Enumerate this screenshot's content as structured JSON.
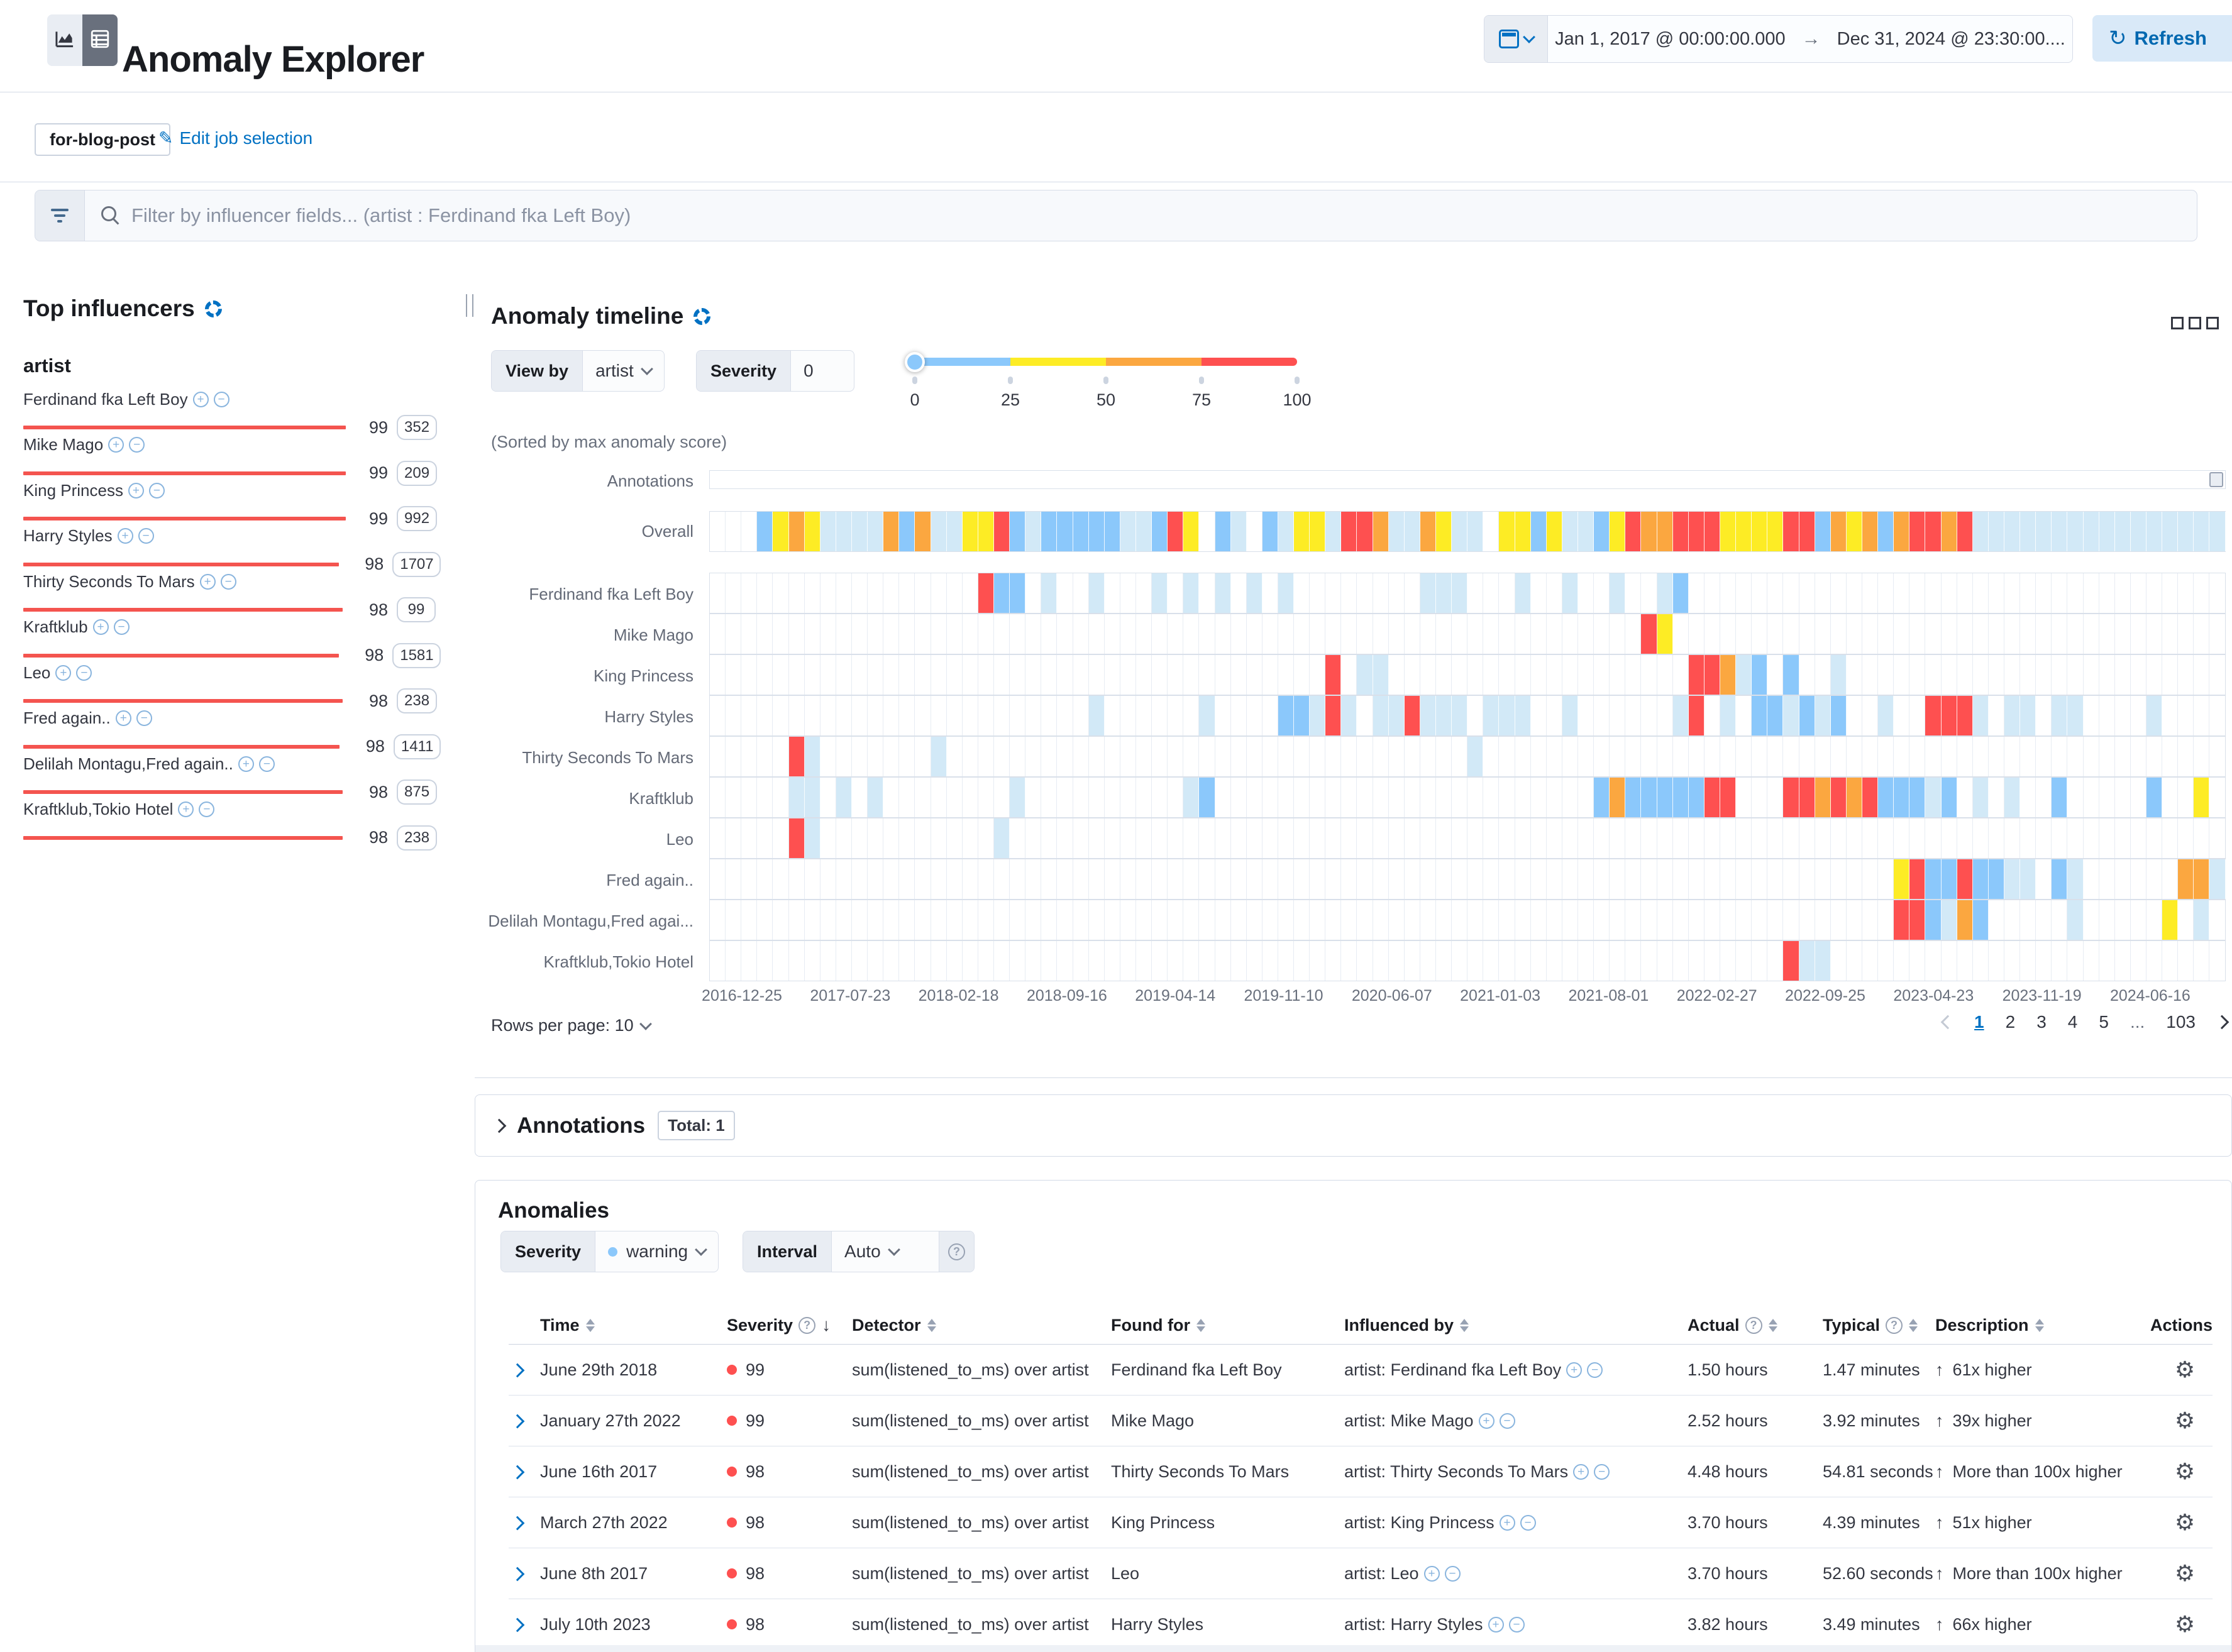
{
  "header": {
    "title": "Anomaly Explorer",
    "time_range": {
      "start": "Jan 1, 2017 @ 00:00:00.000",
      "arrow": "→",
      "end": "Dec 31, 2024 @ 23:30:00....",
      "refresh_label": "Refresh"
    }
  },
  "job_bar": {
    "job_badge": "for-blog-post",
    "edit_link": "Edit job selection"
  },
  "filter_bar": {
    "placeholder": "Filter by influencer fields... (artist : Ferdinand fka Left Boy)"
  },
  "influencers": {
    "title": "Top influencers",
    "field_name": "artist",
    "bar_color": "#F4544F",
    "items": [
      {
        "name": "Ferdinand fka Left Boy",
        "score": "99",
        "count": "352"
      },
      {
        "name": "Mike Mago",
        "score": "99",
        "count": "209"
      },
      {
        "name": "King Princess",
        "score": "99",
        "count": "992"
      },
      {
        "name": "Harry Styles",
        "score": "98",
        "count": "1707"
      },
      {
        "name": "Thirty Seconds To Mars",
        "score": "98",
        "count": "99"
      },
      {
        "name": "Kraftklub",
        "score": "98",
        "count": "1581"
      },
      {
        "name": "Leo",
        "score": "98",
        "count": "238"
      },
      {
        "name": "Fred again..",
        "score": "98",
        "count": "1411"
      },
      {
        "name": "Delilah Montagu,Fred again..",
        "score": "98",
        "count": "875"
      },
      {
        "name": "Kraftklub,Tokio Hotel",
        "score": "98",
        "count": "238"
      }
    ]
  },
  "severity_colors": {
    "low": "#D2E9F7",
    "warning": "#8BC8FB",
    "minor": "#FDEC25",
    "major": "#FBA740",
    "critical": "#FE5050"
  },
  "timeline": {
    "title": "Anomaly timeline",
    "view_by_label": "View by",
    "view_by_value": "artist",
    "severity_label": "Severity",
    "severity_value": "0",
    "severity_scale_ticks": [
      "0",
      "25",
      "50",
      "75",
      "100"
    ],
    "sorted_note": "(Sorted by max anomaly score)",
    "annotations_label": "Annotations",
    "overall_label": "Overall",
    "overall_cells": "...wmMmllllMwMllmmcwlwwwwwllwcm.wl.wlmmlccMllMmll.mmwmllwmcMMcccmmmmccwMmMwMccMcllllllllllllllll",
    "lanes": [
      {
        "label": "Ferdinand fka Left Boy",
        "cells": ".................cww.l..l...l.l.l.l.l........lll...l..l..l..lw.................................."
      },
      {
        "label": "Mike Mago",
        "cells": "...........................................................cm..................................."
      },
      {
        "label": "King Princess",
        "cells": ".......................................c.ll...................ccMlw.w..l........................"
      },
      {
        "label": "Harry Styles",
        "cells": "........................l......l....wwlcl.llclll.lll..l......lc.l.wwlwlw..l..cccl.ll.ll....l...."
      },
      {
        "label": "Thirty Seconds To Mars",
        "cells": ".....cl.......l.................................l..............................................."
      },
      {
        "label": "Kraftklub",
        "cells": ".....ll.l.l........l..........lw........................wMwwwwwcc...ccMcMcwwwlw.l.l..w.....w..m."
      },
      {
        "label": "Leo",
        "cells": ".....cl...........l............................................................................."
      },
      {
        "label": "Fred again..",
        "cells": "...........................................................................mcwwcwwll.wl......MMl"
      },
      {
        "label": "Delilah Montagu,Fred agai...",
        "cells": "...........................................................................ccwlMw.....l.....m.l."
      },
      {
        "label": "Kraftklub,Tokio Hotel",
        "cells": "....................................................................cll........................."
      }
    ],
    "axis_labels": [
      "2016-12-25",
      "2017-07-23",
      "2018-02-18",
      "2018-09-16",
      "2019-04-14",
      "2019-11-10",
      "2020-06-07",
      "2021-01-03",
      "2021-08-01",
      "2022-02-27",
      "2022-09-25",
      "2023-04-23",
      "2023-11-19",
      "2024-06-16"
    ],
    "rows_per_page_label": "Rows per page: 10",
    "pagination": {
      "pages": [
        "1",
        "2",
        "3",
        "4",
        "5",
        "...",
        "103"
      ],
      "active": "1"
    }
  },
  "annotations_section": {
    "title": "Annotations",
    "total_badge": "Total: 1"
  },
  "anomalies": {
    "title": "Anomalies",
    "severity_label": "Severity",
    "severity_value": "warning",
    "interval_label": "Interval",
    "interval_value": "Auto",
    "columns": [
      {
        "label": "Time",
        "sort": true
      },
      {
        "label": "Severity",
        "help": true,
        "sorted_desc": true
      },
      {
        "label": "Detector",
        "sort": true
      },
      {
        "label": "Found for",
        "sort": true
      },
      {
        "label": "Influenced by",
        "sort": true
      },
      {
        "label": "Actual",
        "help": true,
        "sort": true
      },
      {
        "label": "Typical",
        "help": true,
        "sort": true
      },
      {
        "label": "Description",
        "sort": true
      },
      {
        "label": "Actions"
      }
    ],
    "rows": [
      {
        "time": "June 29th 2018",
        "severity": "99",
        "detector": "sum(listened_to_ms) over artist",
        "found_for": "Ferdinand fka Left Boy",
        "influenced_by": "artist: Ferdinand fka Left Boy",
        "actual": "1.50 hours",
        "typical": "1.47 minutes",
        "description": "61x higher"
      },
      {
        "time": "January 27th 2022",
        "severity": "99",
        "detector": "sum(listened_to_ms) over artist",
        "found_for": "Mike Mago",
        "influenced_by": "artist: Mike Mago",
        "actual": "2.52 hours",
        "typical": "3.92 minutes",
        "description": "39x higher"
      },
      {
        "time": "June 16th 2017",
        "severity": "98",
        "detector": "sum(listened_to_ms) over artist",
        "found_for": "Thirty Seconds To Mars",
        "influenced_by": "artist: Thirty Seconds To Mars",
        "actual": "4.48 hours",
        "typical": "54.81 seconds",
        "description": "More than 100x higher"
      },
      {
        "time": "March 27th 2022",
        "severity": "98",
        "detector": "sum(listened_to_ms) over artist",
        "found_for": "King Princess",
        "influenced_by": "artist: King Princess",
        "actual": "3.70 hours",
        "typical": "4.39 minutes",
        "description": "51x higher"
      },
      {
        "time": "June 8th 2017",
        "severity": "98",
        "detector": "sum(listened_to_ms) over artist",
        "found_for": "Leo",
        "influenced_by": "artist: Leo",
        "actual": "3.70 hours",
        "typical": "52.60 seconds",
        "description": "More than 100x higher"
      },
      {
        "time": "July 10th 2023",
        "severity": "98",
        "detector": "sum(listened_to_ms) over artist",
        "found_for": "Harry Styles",
        "influenced_by": "artist: Harry Styles",
        "actual": "3.82 hours",
        "typical": "3.49 minutes",
        "description": "66x higher"
      }
    ]
  }
}
